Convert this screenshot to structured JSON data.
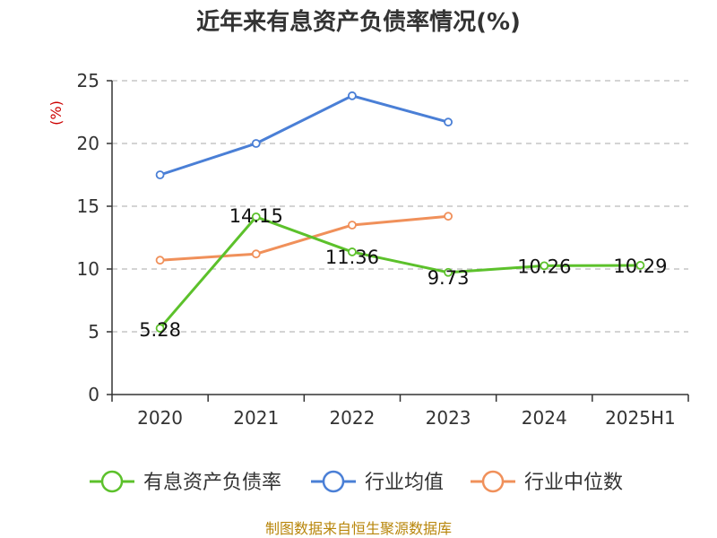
{
  "chart_data": {
    "type": "line",
    "title": "近年来有息资产负债率情况(%)",
    "ylabel": "(%)",
    "categories": [
      "2020",
      "2021",
      "2022",
      "2023",
      "2024",
      "2025H1"
    ],
    "ylim": [
      0,
      25
    ],
    "yticks": [
      0,
      5,
      10,
      15,
      20,
      25
    ],
    "grid": true,
    "legend_position": "bottom",
    "series": [
      {
        "name": "有息资产负债率",
        "color": "#5cc12b",
        "values": [
          5.28,
          14.15,
          11.36,
          9.73,
          10.26,
          10.29
        ],
        "labels": [
          "5.28",
          "14.15",
          "11.36",
          "9.73",
          "10.26",
          "10.29"
        ]
      },
      {
        "name": "行业均值",
        "color": "#4a7fd6",
        "values": [
          17.5,
          20.0,
          23.8,
          21.7,
          null,
          null
        ]
      },
      {
        "name": "行业中位数",
        "color": "#f0905a",
        "values": [
          10.7,
          11.2,
          13.5,
          14.2,
          null,
          null
        ]
      }
    ]
  },
  "source": "制图数据来自恒生聚源数据库"
}
